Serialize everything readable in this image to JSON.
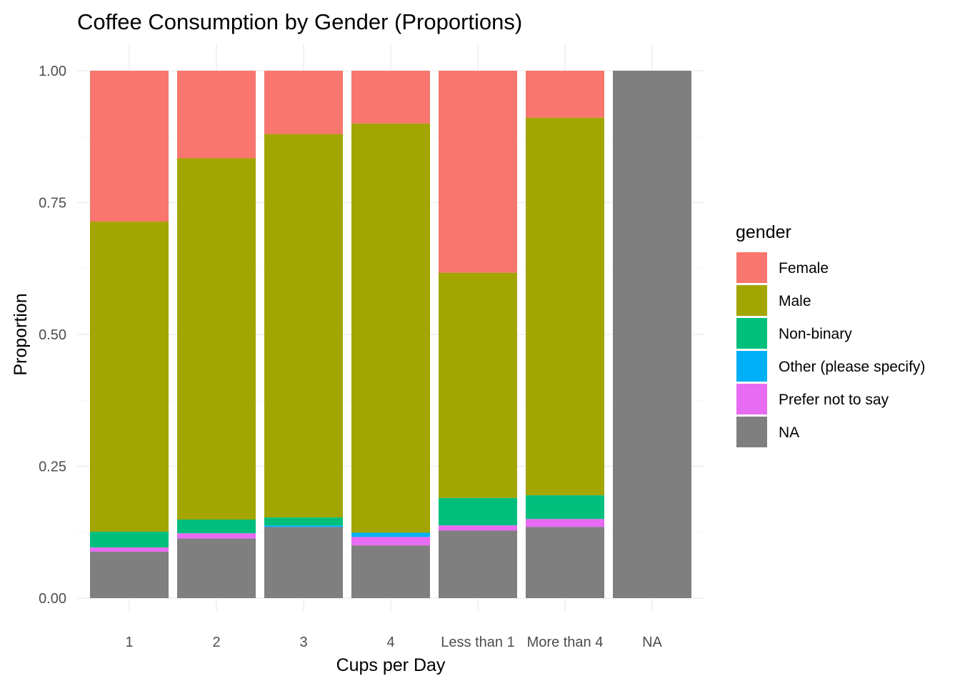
{
  "chart_data": {
    "type": "bar",
    "stacked": true,
    "title": "Coffee Consumption by Gender (Proportions)",
    "xlabel": "Cups per Day",
    "ylabel": "Proportion",
    "ylim": [
      0,
      1
    ],
    "yticks": [
      "0.00",
      "0.25",
      "0.50",
      "0.75",
      "1.00"
    ],
    "categories": [
      "1",
      "2",
      "3",
      "4",
      "Less than 1",
      "More than 4",
      "NA"
    ],
    "grid": true,
    "legend_position": "right",
    "legend_title": "gender",
    "series": [
      {
        "name": "NA",
        "color": "#7F7F7F",
        "values": [
          0.088,
          0.113,
          0.135,
          0.1,
          0.128,
          0.135,
          1.0
        ]
      },
      {
        "name": "Prefer not to say",
        "color": "#E76BF3",
        "values": [
          0.008,
          0.01,
          0.0,
          0.016,
          0.01,
          0.015,
          0.0
        ]
      },
      {
        "name": "Other (please specify)",
        "color": "#00B0F6",
        "values": [
          0.0,
          0.0,
          0.003,
          0.008,
          0.0,
          0.0,
          0.0
        ]
      },
      {
        "name": "Non-binary",
        "color": "#00BF7D",
        "values": [
          0.03,
          0.026,
          0.015,
          0.0,
          0.052,
          0.045,
          0.0
        ]
      },
      {
        "name": "Male",
        "color": "#A3A500",
        "values": [
          0.588,
          0.685,
          0.727,
          0.776,
          0.427,
          0.716,
          0.0
        ]
      },
      {
        "name": "Female",
        "color": "#F8766D",
        "values": [
          0.286,
          0.166,
          0.12,
          0.1,
          0.383,
          0.089,
          0.0
        ]
      }
    ],
    "legend_order": [
      "Female",
      "Male",
      "Non-binary",
      "Other (please specify)",
      "Prefer not to say",
      "NA"
    ]
  }
}
